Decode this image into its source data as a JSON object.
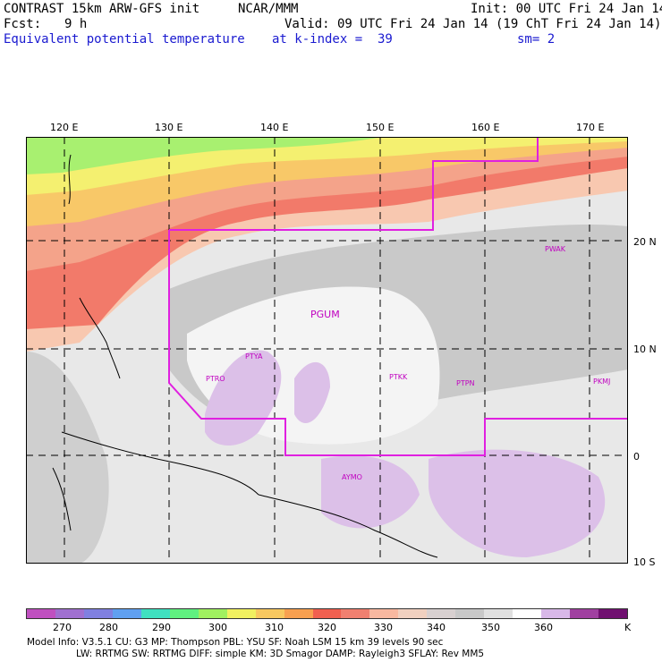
{
  "header": {
    "title": "CONTRAST 15km ARW-GFS init",
    "org": "NCAR/MMM",
    "init": "Init: 00 UTC Fri 24 Jan 14",
    "fcst_label": "Fcst:",
    "fcst_value": "9 h",
    "valid": "Valid: 09 UTC Fri 24 Jan 14 (19 ChT Fri 24 Jan 14)",
    "field": "Equivalent potential temperature",
    "level": "at k-index =  39",
    "smooth": "sm= 2"
  },
  "map": {
    "lon_ticks": [
      "120 E",
      "130 E",
      "140 E",
      "150 E",
      "160 E",
      "170 E"
    ],
    "lat_ticks": [
      "20 N",
      "10 N",
      "0",
      "10 S"
    ],
    "stations": [
      "PGUM",
      "PTYA",
      "PTRO",
      "PTKK",
      "PTPN",
      "PKMJ",
      "PWAK",
      "AYMO"
    ]
  },
  "colorbar": {
    "labels": [
      "270",
      "280",
      "290",
      "300",
      "310",
      "320",
      "330",
      "340",
      "350",
      "360",
      "K"
    ],
    "colors": [
      "#c050c0",
      "#a070d0",
      "#8080e0",
      "#60a0f0",
      "#40e0c0",
      "#60f080",
      "#a0f060",
      "#f0f060",
      "#f8c860",
      "#f8a050",
      "#f06050",
      "#f08070",
      "#f8b8a0",
      "#f0d0c0",
      "#d8d0d0",
      "#c8c8c8",
      "#e0e0e0",
      "#ffffff",
      "#d8b8e8",
      "#a040a0",
      "#701070"
    ]
  },
  "footer": {
    "line1": "Model Info: V3.5.1    CU: G3      MP: Thompson    PBL: YSU      SF: Noah LSM    15 km   39 levels   90 sec",
    "line2": "LW: RRTMG    SW: RRTMG   DIFF: simple KM: 3D Smagor DAMP: Rayleigh3   SFLAY: Rev MM5"
  }
}
